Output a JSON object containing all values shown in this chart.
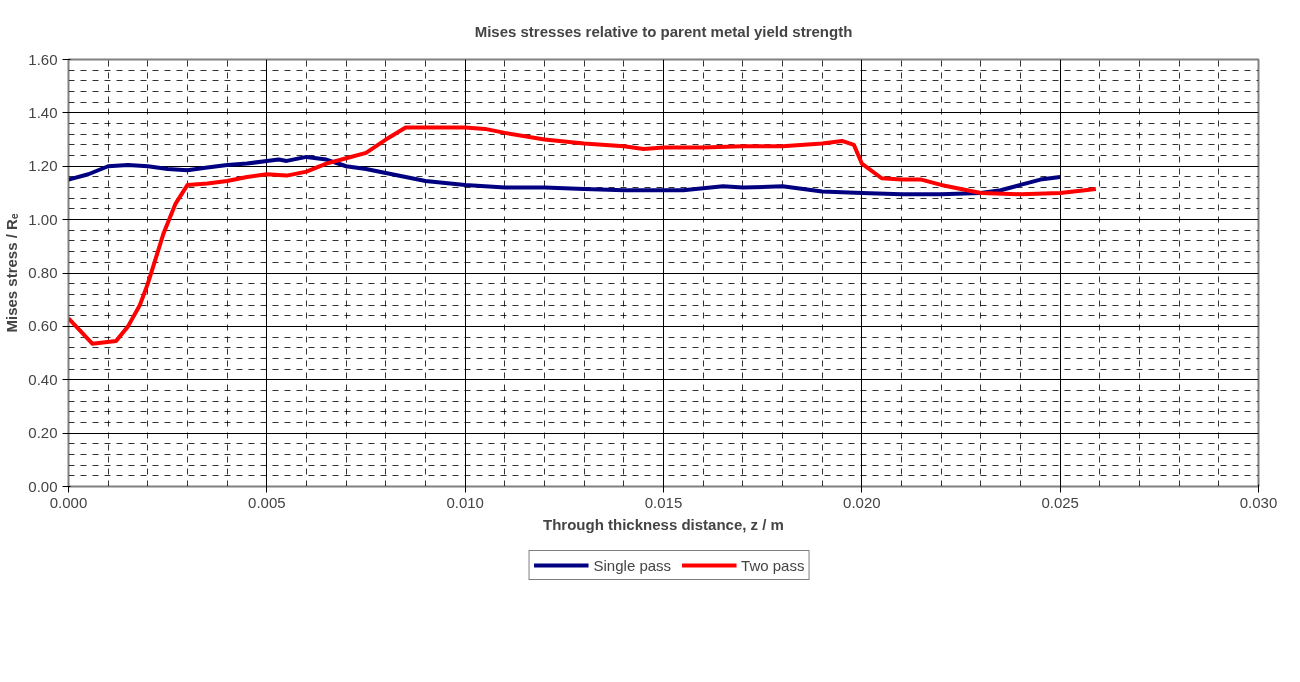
{
  "chart_data": {
    "type": "line",
    "title": "Mises stresses relative to parent metal yield strength",
    "xlabel": "Through thickness distance, z / m",
    "ylabel": "Mises stress / Rₑ",
    "xlim": [
      0,
      0.03
    ],
    "ylim": [
      0,
      1.6
    ],
    "xticks": [
      {
        "value": 0,
        "label": "0.000"
      },
      {
        "value": 0.005,
        "label": "0.005"
      },
      {
        "value": 0.01,
        "label": "0.010"
      },
      {
        "value": 0.015,
        "label": "0.015"
      },
      {
        "value": 0.02,
        "label": "0.020"
      },
      {
        "value": 0.025,
        "label": "0.025"
      },
      {
        "value": 0.03,
        "label": "0.030"
      }
    ],
    "yticks": [
      {
        "value": 0,
        "label": "0.00"
      },
      {
        "value": 0.2,
        "label": "0.20"
      },
      {
        "value": 0.4,
        "label": "0.40"
      },
      {
        "value": 0.6,
        "label": "0.60"
      },
      {
        "value": 0.8,
        "label": "0.80"
      },
      {
        "value": 1.0,
        "label": "1.00"
      },
      {
        "value": 1.2,
        "label": "1.20"
      },
      {
        "value": 1.4,
        "label": "1.40"
      },
      {
        "value": 1.6,
        "label": "1.60"
      }
    ],
    "grid": true,
    "legend": "bottom",
    "marker": "none",
    "line_style": "solid",
    "series": [
      {
        "name": "Single pass",
        "color": "#000080",
        "x": [
          0,
          0.0005,
          0.001,
          0.0015,
          0.002,
          0.0025,
          0.003,
          0.0035,
          0.004,
          0.0045,
          0.005,
          0.0053,
          0.0055,
          0.006,
          0.0065,
          0.007,
          0.0075,
          0.008,
          0.009,
          0.01,
          0.011,
          0.012,
          0.013,
          0.014,
          0.015,
          0.0155,
          0.0165,
          0.017,
          0.018,
          0.019,
          0.02,
          0.021,
          0.022,
          0.023,
          0.0235,
          0.024,
          0.0245,
          0.025
        ],
        "values": [
          1.15,
          1.17,
          1.2,
          1.205,
          1.2,
          1.19,
          1.185,
          1.195,
          1.205,
          1.21,
          1.22,
          1.225,
          1.22,
          1.235,
          1.225,
          1.2,
          1.19,
          1.175,
          1.145,
          1.13,
          1.12,
          1.12,
          1.115,
          1.11,
          1.11,
          1.11,
          1.125,
          1.12,
          1.125,
          1.105,
          1.1,
          1.095,
          1.095,
          1.1,
          1.11,
          1.13,
          1.15,
          1.16
        ]
      },
      {
        "name": "Two pass",
        "color": "#ff0000",
        "x": [
          0,
          0.0006,
          0.0012,
          0.0015,
          0.0018,
          0.002,
          0.0024,
          0.0027,
          0.003,
          0.0035,
          0.004,
          0.0045,
          0.005,
          0.0055,
          0.006,
          0.0065,
          0.007,
          0.0075,
          0.008,
          0.0085,
          0.009,
          0.01,
          0.0105,
          0.011,
          0.012,
          0.013,
          0.014,
          0.0145,
          0.015,
          0.016,
          0.017,
          0.018,
          0.019,
          0.0195,
          0.0198,
          0.02,
          0.0205,
          0.021,
          0.0215,
          0.022,
          0.023,
          0.024,
          0.025,
          0.0259
        ],
        "values": [
          0.63,
          0.535,
          0.545,
          0.6,
          0.68,
          0.76,
          0.95,
          1.06,
          1.13,
          1.135,
          1.145,
          1.16,
          1.17,
          1.165,
          1.18,
          1.21,
          1.23,
          1.25,
          1.3,
          1.345,
          1.345,
          1.345,
          1.34,
          1.325,
          1.3,
          1.285,
          1.275,
          1.265,
          1.27,
          1.27,
          1.275,
          1.275,
          1.285,
          1.295,
          1.28,
          1.21,
          1.155,
          1.15,
          1.15,
          1.13,
          1.1,
          1.095,
          1.1,
          1.115
        ]
      }
    ]
  }
}
